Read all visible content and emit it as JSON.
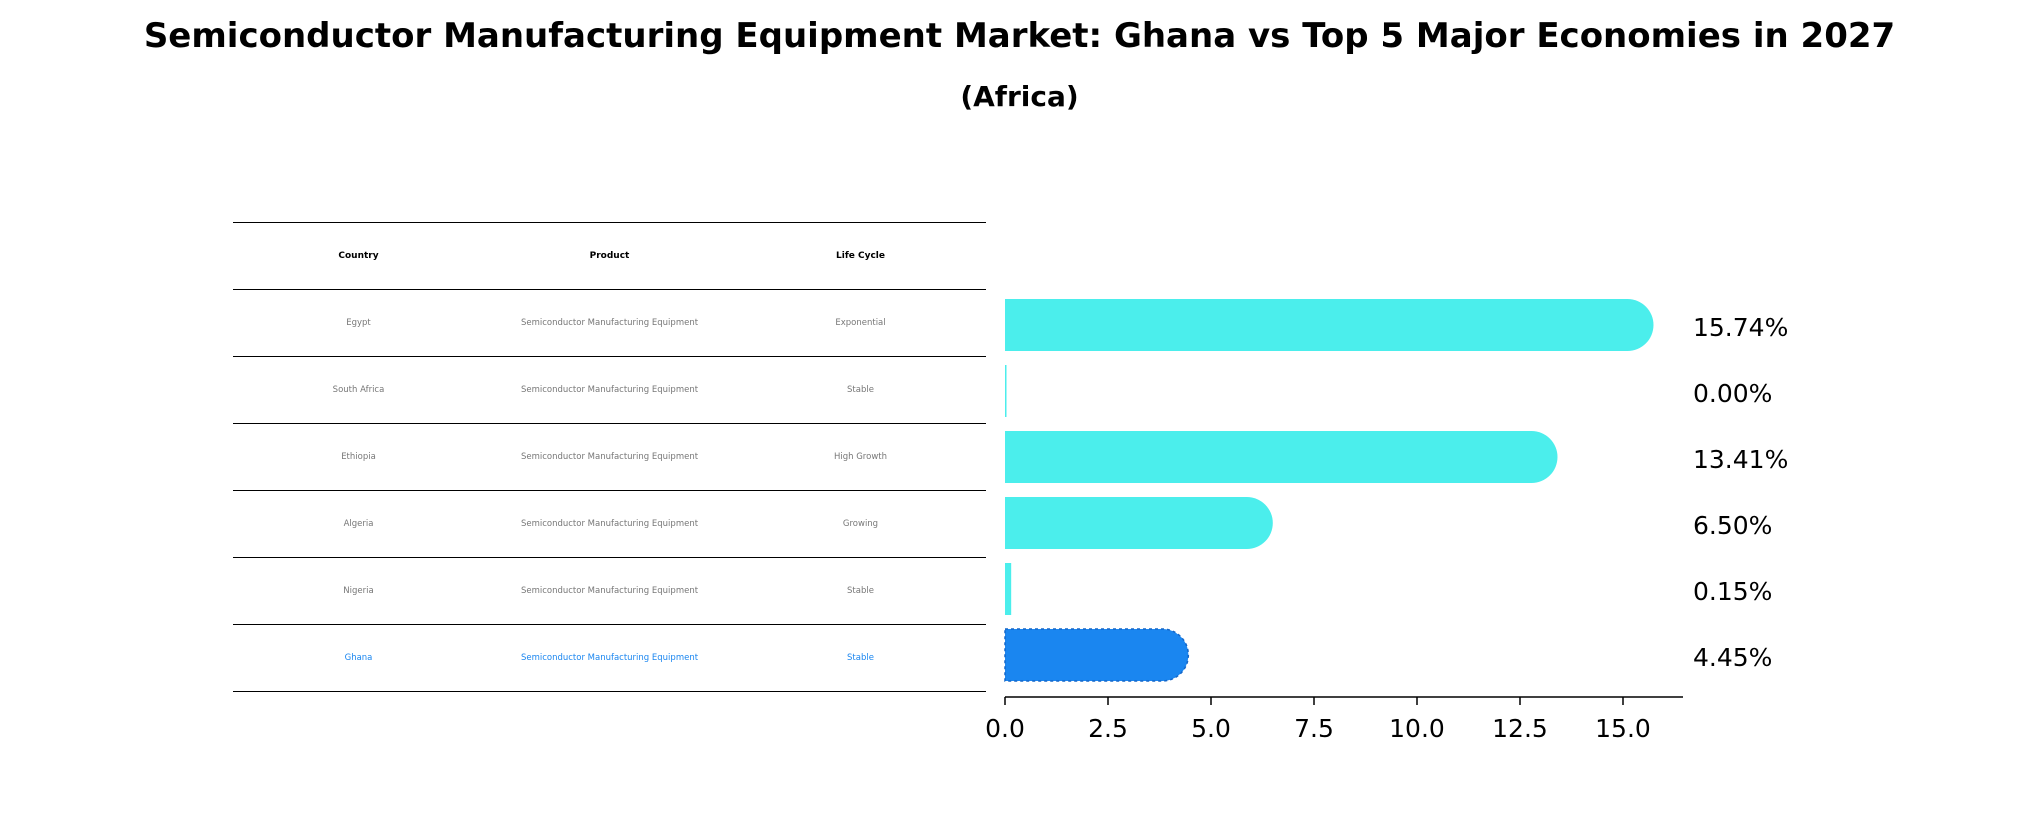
{
  "title": "Semiconductor Manufacturing Equipment Market: Ghana vs Top 5 Major Economies in 2027",
  "subtitle": "(Africa)",
  "table": {
    "headers": [
      "Country",
      "Product",
      "Life Cycle"
    ],
    "rows": [
      {
        "country": "Egypt",
        "product": "Semiconductor Manufacturing Equipment",
        "life_cycle": "Exponential"
      },
      {
        "country": "South Africa",
        "product": "Semiconductor Manufacturing Equipment",
        "life_cycle": "Stable"
      },
      {
        "country": "Ethiopia",
        "product": "Semiconductor Manufacturing Equipment",
        "life_cycle": "High Growth"
      },
      {
        "country": "Algeria",
        "product": "Semiconductor Manufacturing Equipment",
        "life_cycle": "Growing"
      },
      {
        "country": "Nigeria",
        "product": "Semiconductor Manufacturing Equipment",
        "life_cycle": "Stable"
      },
      {
        "country": "Ghana",
        "product": "Semiconductor Manufacturing Equipment",
        "life_cycle": "Stable"
      }
    ]
  },
  "chart_data": {
    "type": "bar",
    "orientation": "horizontal",
    "categories": [
      "Egypt",
      "South Africa",
      "Ethiopia",
      "Algeria",
      "Nigeria",
      "Ghana"
    ],
    "values": [
      15.74,
      0.0,
      13.41,
      6.5,
      0.15,
      4.45
    ],
    "data_labels": [
      "15.74%",
      "0.00%",
      "13.41%",
      "6.50%",
      "0.15%",
      "4.45%"
    ],
    "highlight": "Ghana",
    "xlim": [
      0,
      16.5
    ],
    "xticks": [
      0.0,
      2.5,
      5.0,
      7.5,
      10.0,
      12.5,
      15.0
    ],
    "xtick_labels": [
      "0.0",
      "2.5",
      "5.0",
      "7.5",
      "10.0",
      "12.5",
      "15.0"
    ],
    "grid": false,
    "colors": {
      "default": "#4beeec",
      "highlight": "#1a86f0"
    }
  }
}
